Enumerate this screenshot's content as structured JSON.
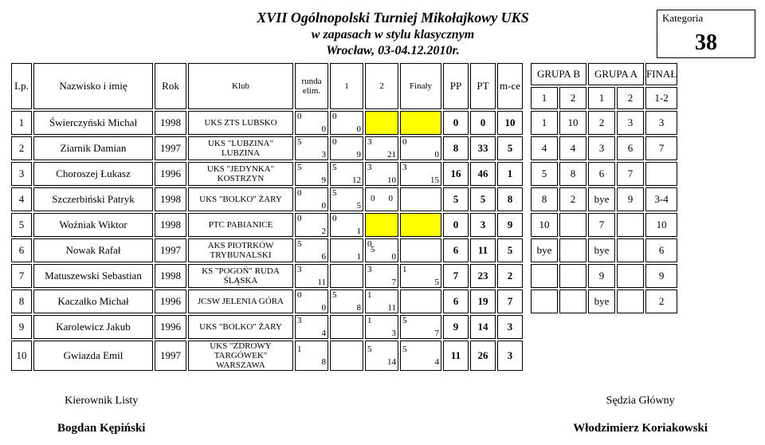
{
  "header": {
    "title1": "XVII Ogólnopolski Turniej Mikołajkowy UKS",
    "title2": "w zapasach w stylu klasycznym",
    "title3": "Wrocław, 03-04.12.2010r.",
    "kategoria_label": "Kategoria",
    "kategoria_value": "38"
  },
  "colhead": {
    "lp": "Lp.",
    "name": "Nazwisko i imię",
    "rok": "Rok",
    "klub": "Klub",
    "runda": "runda elim.",
    "r1": "1",
    "r2": "2",
    "finaly": "Finały",
    "pp": "PP",
    "pt": "PT",
    "mce": "m-ce",
    "grupaB": "GRUPA B",
    "grupaA": "GRUPA A",
    "final": "FINAŁ",
    "g1": "1",
    "g2": "2",
    "g12": "1-2"
  },
  "rows": [
    {
      "lp": "1",
      "name": "Świerczyński Michał",
      "rok": "1998",
      "klub": "UKS ZTS LUBSKO",
      "re": {
        "tl": "0",
        "br": "0"
      },
      "r1": {
        "tl": "0",
        "br": "0"
      },
      "r2_yellow": true,
      "pp": "0",
      "pt": "0",
      "mce": "10",
      "gb1": "1",
      "gb2": "10",
      "ga1": "2",
      "ga2": "3",
      "fin": "3"
    },
    {
      "lp": "2",
      "name": "Ziarnik Damian",
      "rok": "1997",
      "klub": "UKS \"LUBZINA\" LUBZINA",
      "re": {
        "tl": "5",
        "br": "3"
      },
      "r1": {
        "tl": "0",
        "br": "9"
      },
      "r2": {
        "tl": "3",
        "br": "21"
      },
      "fi": {
        "tl": "0",
        "br": "0"
      },
      "pp": "8",
      "pt": "33",
      "mce": "5",
      "gb1": "4",
      "gb2": "4",
      "ga1": "3",
      "ga2": "6",
      "fin": "7"
    },
    {
      "lp": "3",
      "name": "Choroszej Łukasz",
      "rok": "1996",
      "klub": "UKS \"JEDYNKA\" KOSTRZYN",
      "re": {
        "tl": "5",
        "br": "9"
      },
      "r1": {
        "tl": "5",
        "br": "12"
      },
      "r2": {
        "tl": "3",
        "br": "10"
      },
      "fi": {
        "tl": "3",
        "br": "15"
      },
      "pp": "16",
      "pt": "46",
      "mce": "1",
      "gb1": "5",
      "gb2": "8",
      "ga1": "6",
      "ga2": "7",
      "fin": ""
    },
    {
      "lp": "4",
      "name": "Szczerbiński Patryk",
      "rok": "1998",
      "klub": "UKS \"BOLKO\" ŻARY",
      "re": {
        "tl": "0",
        "br": "0"
      },
      "r1": {
        "tl": "5",
        "br": "5"
      },
      "r2": {
        "cl": "0",
        "cr": "0"
      },
      "pp": "5",
      "pt": "5",
      "mce": "8",
      "gb1": "8",
      "gb2": "2",
      "ga1": "bye",
      "ga2": "9",
      "fin": "3-4"
    },
    {
      "lp": "5",
      "name": "Woźniak Wiktor",
      "rok": "1998",
      "klub": "PTC PABIANICE",
      "re": {
        "tl": "0",
        "br": "2"
      },
      "r1": {
        "tl": "0",
        "br": "1"
      },
      "r2_yellow": true,
      "pp": "0",
      "pt": "3",
      "mce": "9",
      "gb1": "10",
      "gb2": "",
      "ga1": "7",
      "ga2": "",
      "fin": "10"
    },
    {
      "lp": "6",
      "name": "Nowak Rafał",
      "rok": "1997",
      "klub": "AKS PIOTRKÓW TRYBUNALSKI",
      "re": {
        "tl": "5",
        "br": "6"
      },
      "r1": {
        "br": "1"
      },
      "r2": {
        "tl": "0",
        "cl": "5",
        "br": "0"
      },
      "pp": "6",
      "pt": "11",
      "mce": "5",
      "gb1": "bye",
      "gb2": "",
      "ga1": "bye",
      "ga2": "",
      "fin": "6"
    },
    {
      "lp": "7",
      "name": "Matuszewski Sebastian",
      "rok": "1998",
      "klub": "KS \"POGOŃ\" RUDA ŚLĄSKA",
      "re": {
        "tl": "3",
        "br": "11"
      },
      "r1": {},
      "r2": {
        "tl": "3",
        "br": "7"
      },
      "fi": {
        "tl": "1",
        "br": "5"
      },
      "pp": "7",
      "pt": "23",
      "mce": "2",
      "gb1": "",
      "gb2": "",
      "ga1": "9",
      "ga2": "",
      "fin": "9"
    },
    {
      "lp": "8",
      "name": "Kaczałko Michał",
      "rok": "1996",
      "klub": "JCSW JELENIA GÓRA",
      "re": {
        "tl": "0",
        "br": "0"
      },
      "r1": {
        "tl": "5",
        "br": "8"
      },
      "r2": {
        "tl": "1",
        "br": "11"
      },
      "pp": "6",
      "pt": "19",
      "mce": "7",
      "gb1": "",
      "gb2": "",
      "ga1": "bye",
      "ga2": "",
      "fin": "2"
    },
    {
      "lp": "9",
      "name": "Karolewicz Jakub",
      "rok": "1996",
      "klub": "UKS \"BOLKO\" ŻARY",
      "re": {
        "tl": "3",
        "br": "4"
      },
      "r1": {},
      "r2": {
        "tl": "1",
        "br": "3"
      },
      "fi": {
        "tl": "5",
        "br": "7"
      },
      "pp": "9",
      "pt": "14",
      "mce": "3"
    },
    {
      "lp": "10",
      "name": "Gwiazda Emil",
      "rok": "1997",
      "klub": "UKS \"ZDROWY TARGÓWEK\" WARSZAWA",
      "re": {
        "tl": "1",
        "br": "8"
      },
      "r1": {},
      "r2": {
        "tl": "5",
        "br": "14"
      },
      "fi": {
        "tl": "5",
        "br": "4"
      },
      "pp": "11",
      "pt": "26",
      "mce": "3"
    }
  ],
  "footer": {
    "left_role": "Kierownik Listy",
    "left_person": "Bogdan Kępiński",
    "right_role": "Sędzia Główny",
    "right_person": "Włodzimierz Koriakowski"
  }
}
